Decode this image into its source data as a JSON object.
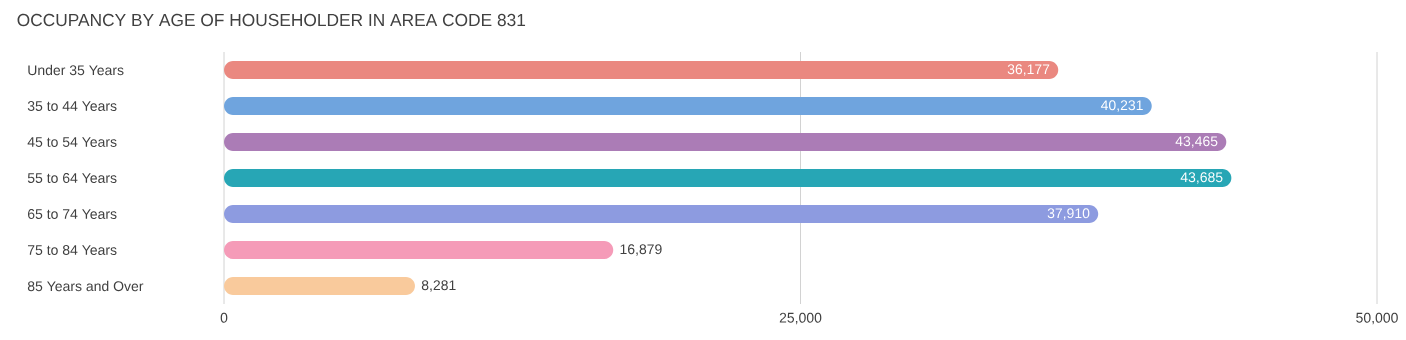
{
  "chart_data": {
    "type": "bar",
    "orientation": "horizontal",
    "title": "OCCUPANCY BY AGE OF HOUSEHOLDER IN AREA CODE 831",
    "categories": [
      "Under 35 Years",
      "35 to 44 Years",
      "45 to 54 Years",
      "55 to 64 Years",
      "65 to 74 Years",
      "75 to 84 Years",
      "85 Years and Over"
    ],
    "values": [
      36177,
      40231,
      43465,
      43685,
      37910,
      16879,
      8281
    ],
    "value_labels": [
      "36,177",
      "40,231",
      "43,465",
      "43,685",
      "37,910",
      "16,879",
      "8,281"
    ],
    "colors": [
      "#ea8880",
      "#6fa4de",
      "#ab7cb6",
      "#27a6b5",
      "#8d9be0",
      "#f59bb8",
      "#f9ca9c"
    ],
    "xlim": [
      0,
      50000
    ],
    "xticks": [
      0,
      {
        "value": 25000,
        "label": "25,000"
      },
      {
        "value": 50000,
        "label": "50,000"
      }
    ],
    "grid": "x"
  }
}
